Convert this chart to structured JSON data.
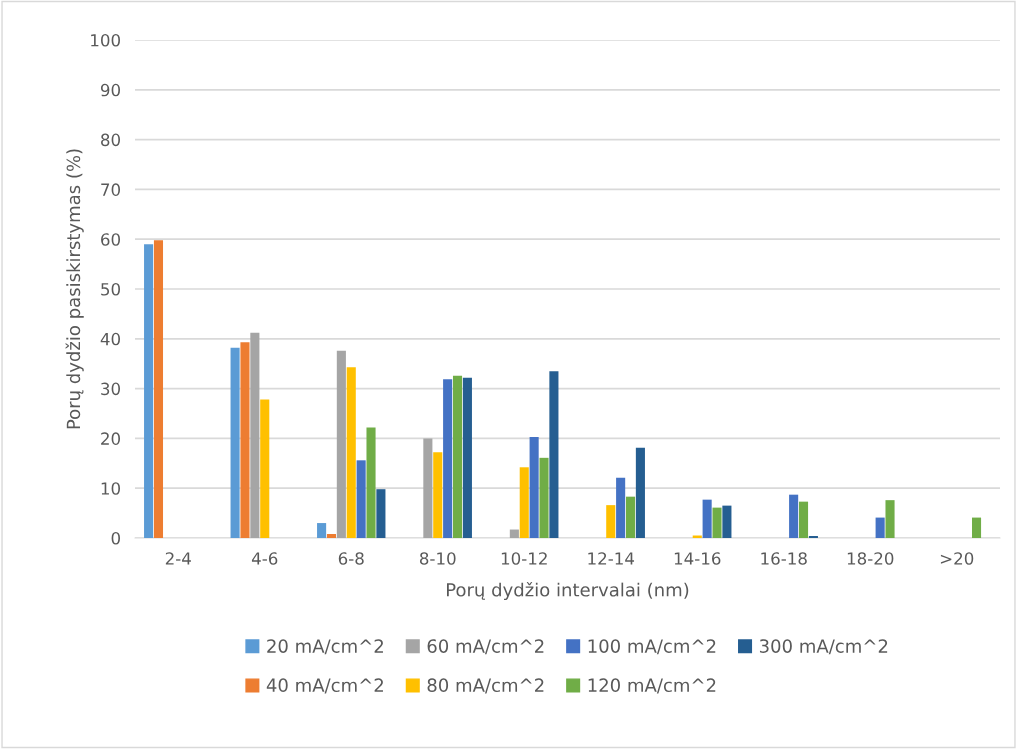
{
  "chart_data": {
    "type": "bar",
    "xlabel": "Porų dydžio intervalai (nm)",
    "ylabel": "Porų dydžio pasiskirstymas (%)",
    "categories": [
      "2-4",
      "4-6",
      "6-8",
      "8-10",
      "10-12",
      "12-14",
      "14-16",
      "16-18",
      "18-20",
      ">20"
    ],
    "series": [
      {
        "name": "20 mA/cm^2",
        "color": "#5b9bd5",
        "values": [
          59,
          38.2,
          3.0,
          0,
          0,
          0,
          0,
          0,
          0,
          0
        ]
      },
      {
        "name": "40 mA/cm^2",
        "color": "#ed7d31",
        "values": [
          59.8,
          39.3,
          0.8,
          0,
          0,
          0,
          0,
          0,
          0,
          0
        ]
      },
      {
        "name": "60 mA/cm^2",
        "color": "#a5a5a5",
        "values": [
          0,
          41.2,
          37.6,
          20.0,
          1.7,
          0,
          0,
          0,
          0,
          0
        ]
      },
      {
        "name": "80 mA/cm^2",
        "color": "#ffc000",
        "values": [
          0,
          27.8,
          34.3,
          17.2,
          14.2,
          6.6,
          0.5,
          0,
          0,
          0
        ]
      },
      {
        "name": "100 mA/cm^2",
        "color": "#4472c4",
        "values": [
          0,
          0,
          15.6,
          31.9,
          20.3,
          12.1,
          7.7,
          8.7,
          4.1,
          0
        ]
      },
      {
        "name": "120 mA/cm^2",
        "color": "#70ad47",
        "values": [
          0,
          0,
          22.2,
          32.6,
          16.1,
          8.3,
          6.1,
          7.3,
          7.6,
          4.1
        ]
      },
      {
        "name": "300 mA/cm^2",
        "color": "#255e91",
        "values": [
          0,
          0,
          9.8,
          32.2,
          33.5,
          18.1,
          6.5,
          0.4,
          0,
          0
        ]
      }
    ],
    "ylim": [
      0,
      100
    ],
    "yticks": [
      0,
      10,
      20,
      30,
      40,
      50,
      60,
      70,
      80,
      90,
      100
    ],
    "grid": "y",
    "legend": "bottom"
  }
}
